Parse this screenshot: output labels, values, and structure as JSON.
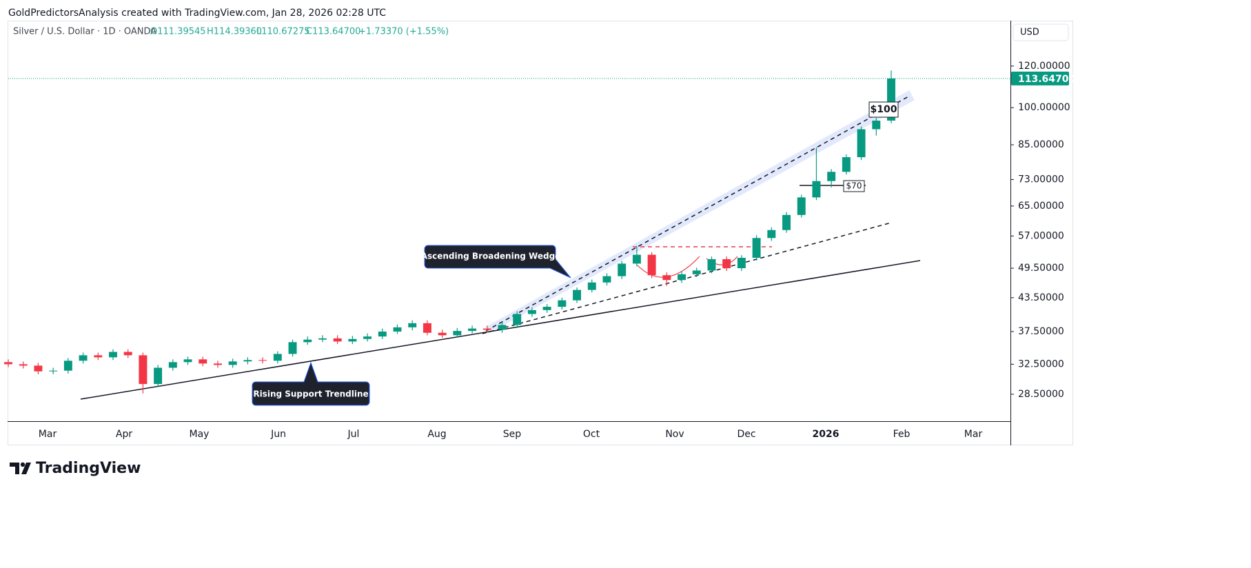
{
  "chart_data": {
    "type": "candlestick",
    "header": "GoldPredictorsAnalysis created with TradingView.com, Jan 28, 2026 02:28 UTC",
    "symbol": "Silver / U.S. Dollar · 1D · OANDA",
    "ohlc_labels": [
      "O111.39545",
      "H114.39360",
      "L110.67275",
      "C113.64700",
      "+1.73370 (+1.55%)"
    ],
    "currency": "USD",
    "log_scale": true,
    "ylim": [
      25.4,
      146.4
    ],
    "yticks": [
      {
        "value": 28.5,
        "label": "28.50000"
      },
      {
        "value": 32.5,
        "label": "32.50000"
      },
      {
        "value": 37.5,
        "label": "37.50000"
      },
      {
        "value": 43.5,
        "label": "43.50000"
      },
      {
        "value": 49.5,
        "label": "49.50000"
      },
      {
        "value": 57,
        "label": "57.00000"
      },
      {
        "value": 65,
        "label": "65.00000"
      },
      {
        "value": 73,
        "label": "73.00000"
      },
      {
        "value": 85,
        "label": "85.00000"
      },
      {
        "value": 100,
        "label": "100.00000"
      },
      {
        "value": 120,
        "label": "120.00000"
      }
    ],
    "last_price": {
      "value": 113.647,
      "label": "113.64700"
    },
    "up_color": "#089981",
    "down_color": "#f23645",
    "categories": [
      "Mar",
      "Apr",
      "May",
      "Jun",
      "Jul",
      "Aug",
      "Sep",
      "Oct",
      "Nov",
      "Dec",
      "2026",
      "Feb",
      "Mar"
    ],
    "open": [
      32.8,
      32.5,
      32.3,
      31.5,
      31.6,
      33.0,
      33.8,
      33.5,
      34.3,
      33.8,
      29.8,
      32.0,
      32.8,
      33.2,
      32.6,
      32.4,
      32.9,
      33.1,
      33.0,
      34.0,
      35.8,
      36.2,
      36.4,
      35.9,
      36.3,
      36.7,
      37.5,
      38.2,
      38.9,
      37.3,
      36.9,
      37.6,
      38.0,
      37.8,
      38.6,
      40.5,
      41.2,
      41.8,
      43.0,
      45.0,
      46.5,
      47.8,
      50.5,
      52.5,
      48.0,
      47.0,
      48.2,
      49.0,
      51.5,
      49.5,
      51.8,
      56.5,
      58.5,
      62.5,
      67.5,
      72.5,
      75.5,
      80.5,
      91.0,
      94.5
    ],
    "high": [
      33.2,
      32.9,
      32.7,
      32.0,
      33.4,
      34.2,
      34.2,
      34.7,
      34.7,
      34.2,
      32.4,
      33.2,
      33.6,
      33.6,
      33.0,
      33.3,
      33.5,
      33.5,
      34.4,
      36.2,
      36.7,
      36.9,
      36.9,
      36.8,
      37.2,
      38.0,
      38.7,
      39.4,
      39.4,
      37.8,
      38.1,
      38.5,
      38.5,
      39.1,
      41.0,
      41.7,
      42.3,
      43.5,
      45.5,
      47.1,
      48.4,
      51.1,
      54.5,
      53.1,
      48.6,
      48.8,
      49.6,
      52.1,
      52.1,
      52.4,
      57.2,
      59.2,
      63.3,
      68.3,
      84.0,
      76.4,
      81.5,
      92.1,
      95.6,
      117.7
    ],
    "low": [
      32.1,
      31.9,
      31.1,
      31.1,
      31.2,
      32.6,
      33.1,
      33.1,
      33.4,
      28.6,
      29.4,
      31.6,
      32.4,
      32.2,
      32.0,
      32.0,
      32.5,
      32.6,
      32.6,
      33.6,
      35.4,
      35.8,
      35.5,
      35.5,
      35.9,
      36.3,
      37.1,
      37.7,
      36.9,
      36.5,
      36.5,
      37.2,
      37.3,
      37.3,
      38.1,
      40.0,
      40.7,
      41.3,
      42.5,
      44.5,
      45.9,
      47.2,
      49.9,
      47.4,
      45.8,
      46.4,
      47.6,
      48.4,
      48.9,
      48.9,
      51.2,
      55.8,
      57.8,
      61.8,
      66.7,
      70.5,
      74.6,
      79.5,
      88.5,
      93.4
    ],
    "close": [
      32.5,
      32.3,
      31.5,
      31.6,
      33.0,
      33.8,
      33.5,
      34.3,
      33.8,
      29.8,
      32.0,
      32.8,
      33.2,
      32.6,
      32.4,
      32.9,
      33.1,
      33.0,
      34.0,
      35.8,
      36.2,
      36.4,
      35.9,
      36.3,
      36.7,
      37.5,
      38.2,
      38.9,
      37.3,
      36.9,
      37.6,
      38.0,
      37.8,
      38.6,
      40.5,
      41.2,
      41.8,
      43.0,
      45.0,
      46.5,
      47.8,
      50.5,
      52.5,
      48.0,
      47.0,
      48.2,
      49.0,
      51.5,
      49.5,
      51.8,
      56.5,
      58.5,
      62.5,
      67.5,
      72.5,
      75.5,
      80.5,
      91.0,
      94.5,
      113.647
    ],
    "annotations": [
      "Ascending Broadening Wedge",
      "Rising Support Trendline",
      "$100",
      "$70"
    ],
    "brand": "TradingView"
  }
}
